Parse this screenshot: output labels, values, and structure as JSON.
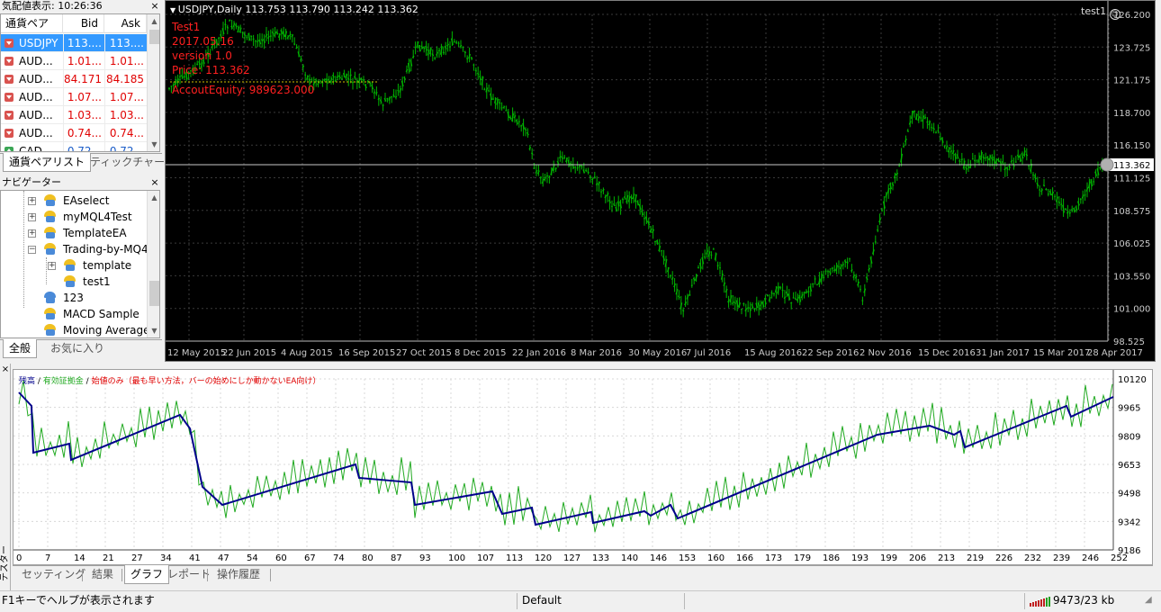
{
  "market_watch": {
    "title": "気配値表示: 10:26:36",
    "close": "×",
    "columns": {
      "symbol": "通貨ペア",
      "bid": "Bid",
      "ask": "Ask"
    },
    "rows": [
      {
        "symbol": "USDJPY",
        "bid": "113....",
        "ask": "113....",
        "dir": "down",
        "selected": true
      },
      {
        "symbol": "AUD...",
        "bid": "1.01...",
        "ask": "1.01...",
        "dir": "down"
      },
      {
        "symbol": "AUD...",
        "bid": "84.171",
        "ask": "84.185",
        "dir": "down"
      },
      {
        "symbol": "AUD...",
        "bid": "1.07...",
        "ask": "1.07...",
        "dir": "down"
      },
      {
        "symbol": "AUD...",
        "bid": "1.03...",
        "ask": "1.03...",
        "dir": "down"
      },
      {
        "symbol": "AUD...",
        "bid": "0.74...",
        "ask": "0.74...",
        "dir": "down"
      },
      {
        "symbol": "CAD...",
        "bid": "0.72...",
        "ask": "0.72...",
        "dir": "up"
      }
    ],
    "tabs": [
      "通貨ペアリスト",
      "ティックチャート"
    ]
  },
  "navigator": {
    "title": "ナビゲーター",
    "close": "×",
    "items": [
      "EAselect",
      "myMQL4Test",
      "TemplateEA",
      "Trading-by-MQ4",
      "template",
      "test1",
      "123",
      "MACD Sample",
      "Moving Average"
    ],
    "tabs": [
      "全般",
      "お気に入り"
    ]
  },
  "chart": {
    "header": "USDJPY,Daily  113.753 113.790 113.242 113.362",
    "ea_name": "test1",
    "overlay": {
      "line1": "Test1",
      "line2": "2017.05.16",
      "line3": "version 1.0",
      "line4": "Price: 113.362",
      "line5": "AccoutEquity: 989623.000"
    },
    "price_labels": [
      "126.200",
      "123.725",
      "121.175",
      "118.700",
      "116.150",
      "113.362",
      "111.125",
      "108.575",
      "106.025",
      "103.550",
      "101.000",
      "98.525"
    ],
    "current_price": "113.362",
    "date_labels": [
      "12 May 2015",
      "22 Jun 2015",
      "4 Aug 2015",
      "16 Sep 2015",
      "27 Oct 2015",
      "8 Dec 2015",
      "22 Jan 2016",
      "8 Mar 2016",
      "30 May 2016",
      "7 Jul 2016",
      "15 Aug 2016",
      "22 Sep 2016",
      "2 Nov 2016",
      "15 Dec 2016",
      "31 Jan 2017",
      "15 Mar 2017",
      "28 Apr 2017"
    ],
    "colors": {
      "background": "#000000",
      "candles": "#00b400",
      "overlay_text": "#ff2020",
      "grid": "#3a3a3a"
    }
  },
  "tester": {
    "side_label": "テスター",
    "close": "×",
    "legend": {
      "balance": "残高",
      "sep1": " / ",
      "equity": "有効証拠金",
      "sep2": " / ",
      "model": "始値のみ（最も早い方法，バーの始めにしか動かないEA向け）"
    },
    "y_labels": [
      "10120",
      "9965",
      "9809",
      "9653",
      "9498",
      "9342",
      "9186"
    ],
    "x_labels": [
      "0",
      "7",
      "14",
      "21",
      "27",
      "34",
      "41",
      "47",
      "54",
      "60",
      "67",
      "74",
      "80",
      "87",
      "93",
      "100",
      "107",
      "113",
      "120",
      "127",
      "133",
      "140",
      "146",
      "153",
      "160",
      "166",
      "173",
      "179",
      "186",
      "193",
      "199",
      "206",
      "213",
      "219",
      "226",
      "232",
      "239",
      "246",
      "252"
    ],
    "tabs": [
      "セッティング",
      "結果",
      "グラフ",
      "レポート",
      "操作履歴"
    ],
    "active_tab": "グラフ",
    "colors": {
      "balance": "#00008b",
      "equity": "#22aa22"
    }
  },
  "status_bar": {
    "help": "F1キーでヘルプが表示されます",
    "profile": "Default",
    "traffic": "9473/23 kb"
  }
}
